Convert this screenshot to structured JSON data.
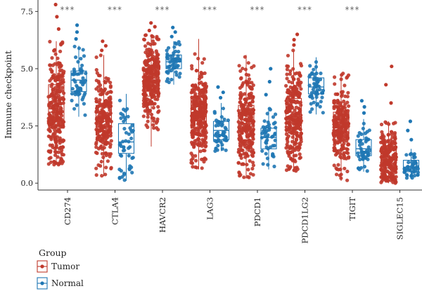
{
  "chart_data": {
    "type": "box",
    "ylabel": "Immune checkpoint",
    "ylim": [
      -0.3,
      8.0
    ],
    "yticks": [
      0.0,
      2.5,
      5.0,
      7.5
    ],
    "ytick_labels": [
      "0.0",
      "2.5",
      "5.0",
      "7.5"
    ],
    "categories": [
      "CD274",
      "CTLA4",
      "HAVCR2",
      "LAG3",
      "PDCD1",
      "PDCD1LG2",
      "TIGIT",
      "SIGLEC15"
    ],
    "significance": [
      "***",
      "***",
      "***",
      "***",
      "***",
      "***",
      "***",
      ""
    ],
    "legend": {
      "title": "Group",
      "position": "bottom-left"
    },
    "colors": {
      "Tumor": "#c0392b",
      "Normal": "#1f77b4"
    },
    "series": [
      {
        "name": "Tumor",
        "boxes": [
          {
            "min": 0.8,
            "q1": 2.4,
            "median": 3.1,
            "q3": 4.3,
            "max": 6.2,
            "n": 280,
            "top": 7.8
          },
          {
            "min": 0.3,
            "q1": 2.1,
            "median": 2.7,
            "q3": 3.4,
            "max": 5.6,
            "n": 230,
            "top": 6.2
          },
          {
            "min": 1.6,
            "q1": 3.8,
            "median": 4.4,
            "q3": 5.0,
            "max": 6.5,
            "n": 280,
            "top": 7.0
          },
          {
            "min": 0.6,
            "q1": 2.4,
            "median": 3.0,
            "q3": 3.8,
            "max": 6.3,
            "n": 280,
            "top": 6.3
          },
          {
            "min": 0.2,
            "q1": 1.9,
            "median": 2.6,
            "q3": 3.4,
            "max": 5.6,
            "n": 260,
            "top": 5.6
          },
          {
            "min": 0.5,
            "q1": 2.2,
            "median": 2.9,
            "q3": 3.7,
            "max": 5.8,
            "n": 270,
            "top": 6.5
          },
          {
            "min": 0.1,
            "q1": 1.9,
            "median": 2.5,
            "q3": 3.1,
            "max": 4.8,
            "n": 250,
            "top": 4.8
          },
          {
            "min": 0.0,
            "q1": 0.5,
            "median": 1.0,
            "q3": 1.5,
            "max": 2.7,
            "n": 220,
            "top": 5.1
          }
        ]
      },
      {
        "name": "Normal",
        "boxes": [
          {
            "min": 2.9,
            "q1": 4.0,
            "median": 4.5,
            "q3": 4.9,
            "max": 6.0,
            "n": 55,
            "top": 6.9
          },
          {
            "min": 0.1,
            "q1": 1.3,
            "median": 1.8,
            "q3": 2.6,
            "max": 3.9,
            "n": 50,
            "top": 3.9
          },
          {
            "min": 4.3,
            "q1": 5.0,
            "median": 5.3,
            "q3": 5.6,
            "max": 6.2,
            "n": 55,
            "top": 6.8
          },
          {
            "min": 1.4,
            "q1": 1.9,
            "median": 2.3,
            "q3": 2.7,
            "max": 3.5,
            "n": 50,
            "top": 4.2
          },
          {
            "min": 0.6,
            "q1": 1.5,
            "median": 2.0,
            "q3": 2.4,
            "max": 3.3,
            "n": 50,
            "top": 5.0
          },
          {
            "min": 3.0,
            "q1": 3.9,
            "median": 4.2,
            "q3": 4.6,
            "max": 5.5,
            "n": 55,
            "top": 5.5
          },
          {
            "min": 0.5,
            "q1": 1.2,
            "median": 1.5,
            "q3": 1.9,
            "max": 2.8,
            "n": 50,
            "top": 3.6
          },
          {
            "min": 0.2,
            "q1": 0.5,
            "median": 0.7,
            "q3": 1.0,
            "max": 1.5,
            "n": 45,
            "top": 2.7
          }
        ]
      }
    ]
  }
}
